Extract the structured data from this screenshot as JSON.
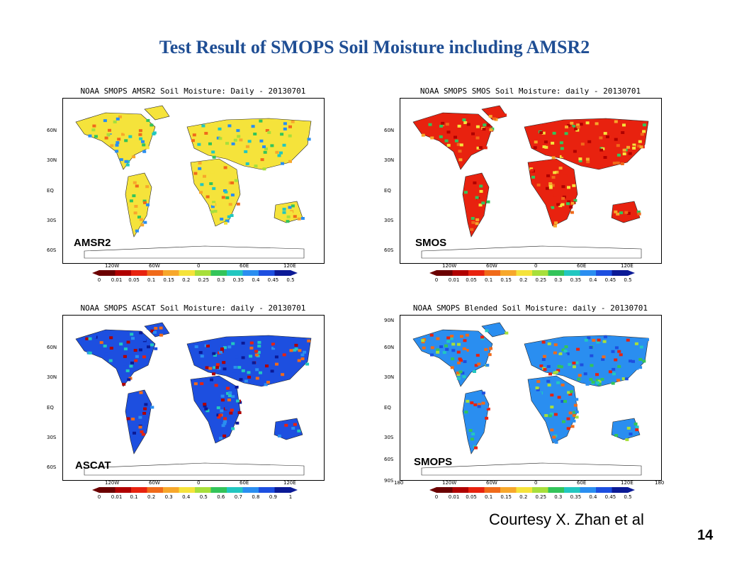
{
  "slide": {
    "title": "Test Result of SMOPS Soil Moisture including AMSR2",
    "courtesy": "Courtesy X. Zhan et al",
    "page_number": "14"
  },
  "panels": [
    {
      "title": "NOAA SMOPS AMSR2 Soil Moisture: Daily - 20130701",
      "label": "AMSR2",
      "lat_labels": [
        "60N",
        "30N",
        "EQ",
        "30S",
        "60S"
      ],
      "lon_labels": [
        "120W",
        "60W",
        "0",
        "60E",
        "120E"
      ],
      "colorbar_ticks": [
        "0",
        "0.01",
        "0.05",
        "0.1",
        "0.15",
        "0.2",
        "0.25",
        "0.3",
        "0.35",
        "0.4",
        "0.45",
        "0.5"
      ]
    },
    {
      "title": "NOAA SMOPS SMOS Soil Moisture: daily - 20130701",
      "label": "SMOS",
      "lat_labels": [
        "60N",
        "30N",
        "EQ",
        "30S",
        "60S"
      ],
      "lon_labels": [
        "120W",
        "60W",
        "0",
        "60E",
        "120E"
      ],
      "colorbar_ticks": [
        "0",
        "0.01",
        "0.05",
        "0.1",
        "0.15",
        "0.2",
        "0.25",
        "0.3",
        "0.35",
        "0.4",
        "0.45",
        "0.5"
      ]
    },
    {
      "title": "NOAA SMOPS ASCAT Soil Moisture: daily - 20130701",
      "label": "ASCAT",
      "lat_labels": [
        "60N",
        "30N",
        "EQ",
        "30S",
        "60S"
      ],
      "lon_labels": [
        "120W",
        "60W",
        "0",
        "60E",
        "120E"
      ],
      "colorbar_ticks": [
        "0",
        "0.01",
        "0.1",
        "0.2",
        "0.3",
        "0.4",
        "0.5",
        "0.6",
        "0.7",
        "0.8",
        "0.9",
        "1"
      ]
    },
    {
      "title": "NOAA SMOPS Blended Soil Moisture: daily - 20130701",
      "label": "SMOPS",
      "lat_labels": [
        "90N",
        "60N",
        "30N",
        "EQ",
        "30S",
        "60S",
        "90S"
      ],
      "lon_labels": [
        "180",
        "120W",
        "60W",
        "0",
        "60E",
        "120E",
        "180"
      ],
      "colorbar_ticks": [
        "0",
        "0.01",
        "0.05",
        "0.1",
        "0.15",
        "0.2",
        "0.25",
        "0.3",
        "0.35",
        "0.4",
        "0.45",
        "0.5"
      ]
    }
  ],
  "colorbar_colors": [
    "#6b0000",
    "#b00000",
    "#e8220f",
    "#f06a1a",
    "#f7a72b",
    "#f5e33b",
    "#a7df3b",
    "#33c45a",
    "#22c7c0",
    "#2a8ef0",
    "#1d4fe0",
    "#0b1a96"
  ]
}
